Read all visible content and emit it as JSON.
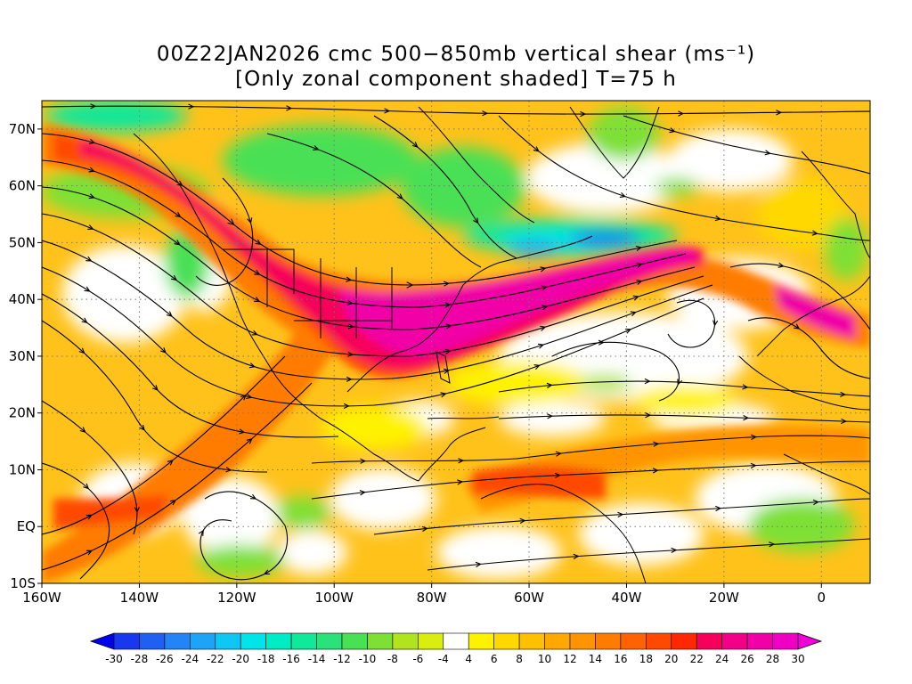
{
  "title": {
    "line1": "00Z22JAN2026 cmc 500−850mb vertical shear (ms⁻¹)",
    "line2": "[Only zonal component shaded] T=75 h"
  },
  "map": {
    "lon_range": [
      -160,
      10
    ],
    "lat_range": [
      -10,
      75
    ],
    "lon_ticks": [
      {
        "value": -160,
        "label": "160W"
      },
      {
        "value": -140,
        "label": "140W"
      },
      {
        "value": -120,
        "label": "120W"
      },
      {
        "value": -100,
        "label": "100W"
      },
      {
        "value": -80,
        "label": "80W"
      },
      {
        "value": -60,
        "label": "60W"
      },
      {
        "value": -40,
        "label": "40W"
      },
      {
        "value": -20,
        "label": "20W"
      },
      {
        "value": 0,
        "label": "0"
      }
    ],
    "lat_ticks": [
      {
        "value": 70,
        "label": "70N"
      },
      {
        "value": 60,
        "label": "60N"
      },
      {
        "value": 50,
        "label": "50N"
      },
      {
        "value": 40,
        "label": "40N"
      },
      {
        "value": 30,
        "label": "30N"
      },
      {
        "value": 20,
        "label": "20N"
      },
      {
        "value": 10,
        "label": "10N"
      },
      {
        "value": 0,
        "label": "EQ"
      },
      {
        "value": -10,
        "label": "10S"
      }
    ],
    "grid": "dotted",
    "overlay": "streamlines",
    "shading": "zonal vertical shear"
  },
  "colorbar": {
    "labels": [
      "-30",
      "-28",
      "-26",
      "-24",
      "-22",
      "-20",
      "-18",
      "-16",
      "-14",
      "-12",
      "-10",
      "-8",
      "-6",
      "-4",
      "4",
      "6",
      "8",
      "10",
      "12",
      "14",
      "16",
      "18",
      "20",
      "22",
      "24",
      "26",
      "28",
      "30"
    ],
    "colors": [
      "#0000ee",
      "#1a37f0",
      "#1f60f3",
      "#2384f5",
      "#1ea4f6",
      "#0fc7f5",
      "#00e4ea",
      "#00ecc4",
      "#10e89a",
      "#29e27a",
      "#4ae054",
      "#7ee035",
      "#b1e41c",
      "#d9ee0e",
      "#ffffff",
      "#fff200",
      "#ffd800",
      "#ffc000",
      "#ffa800",
      "#ff9400",
      "#ff7c00",
      "#ff6200",
      "#ff4800",
      "#ff2800",
      "#f5005a",
      "#f20088",
      "#f000a6",
      "#f000c4",
      "#f000d8"
    ]
  }
}
